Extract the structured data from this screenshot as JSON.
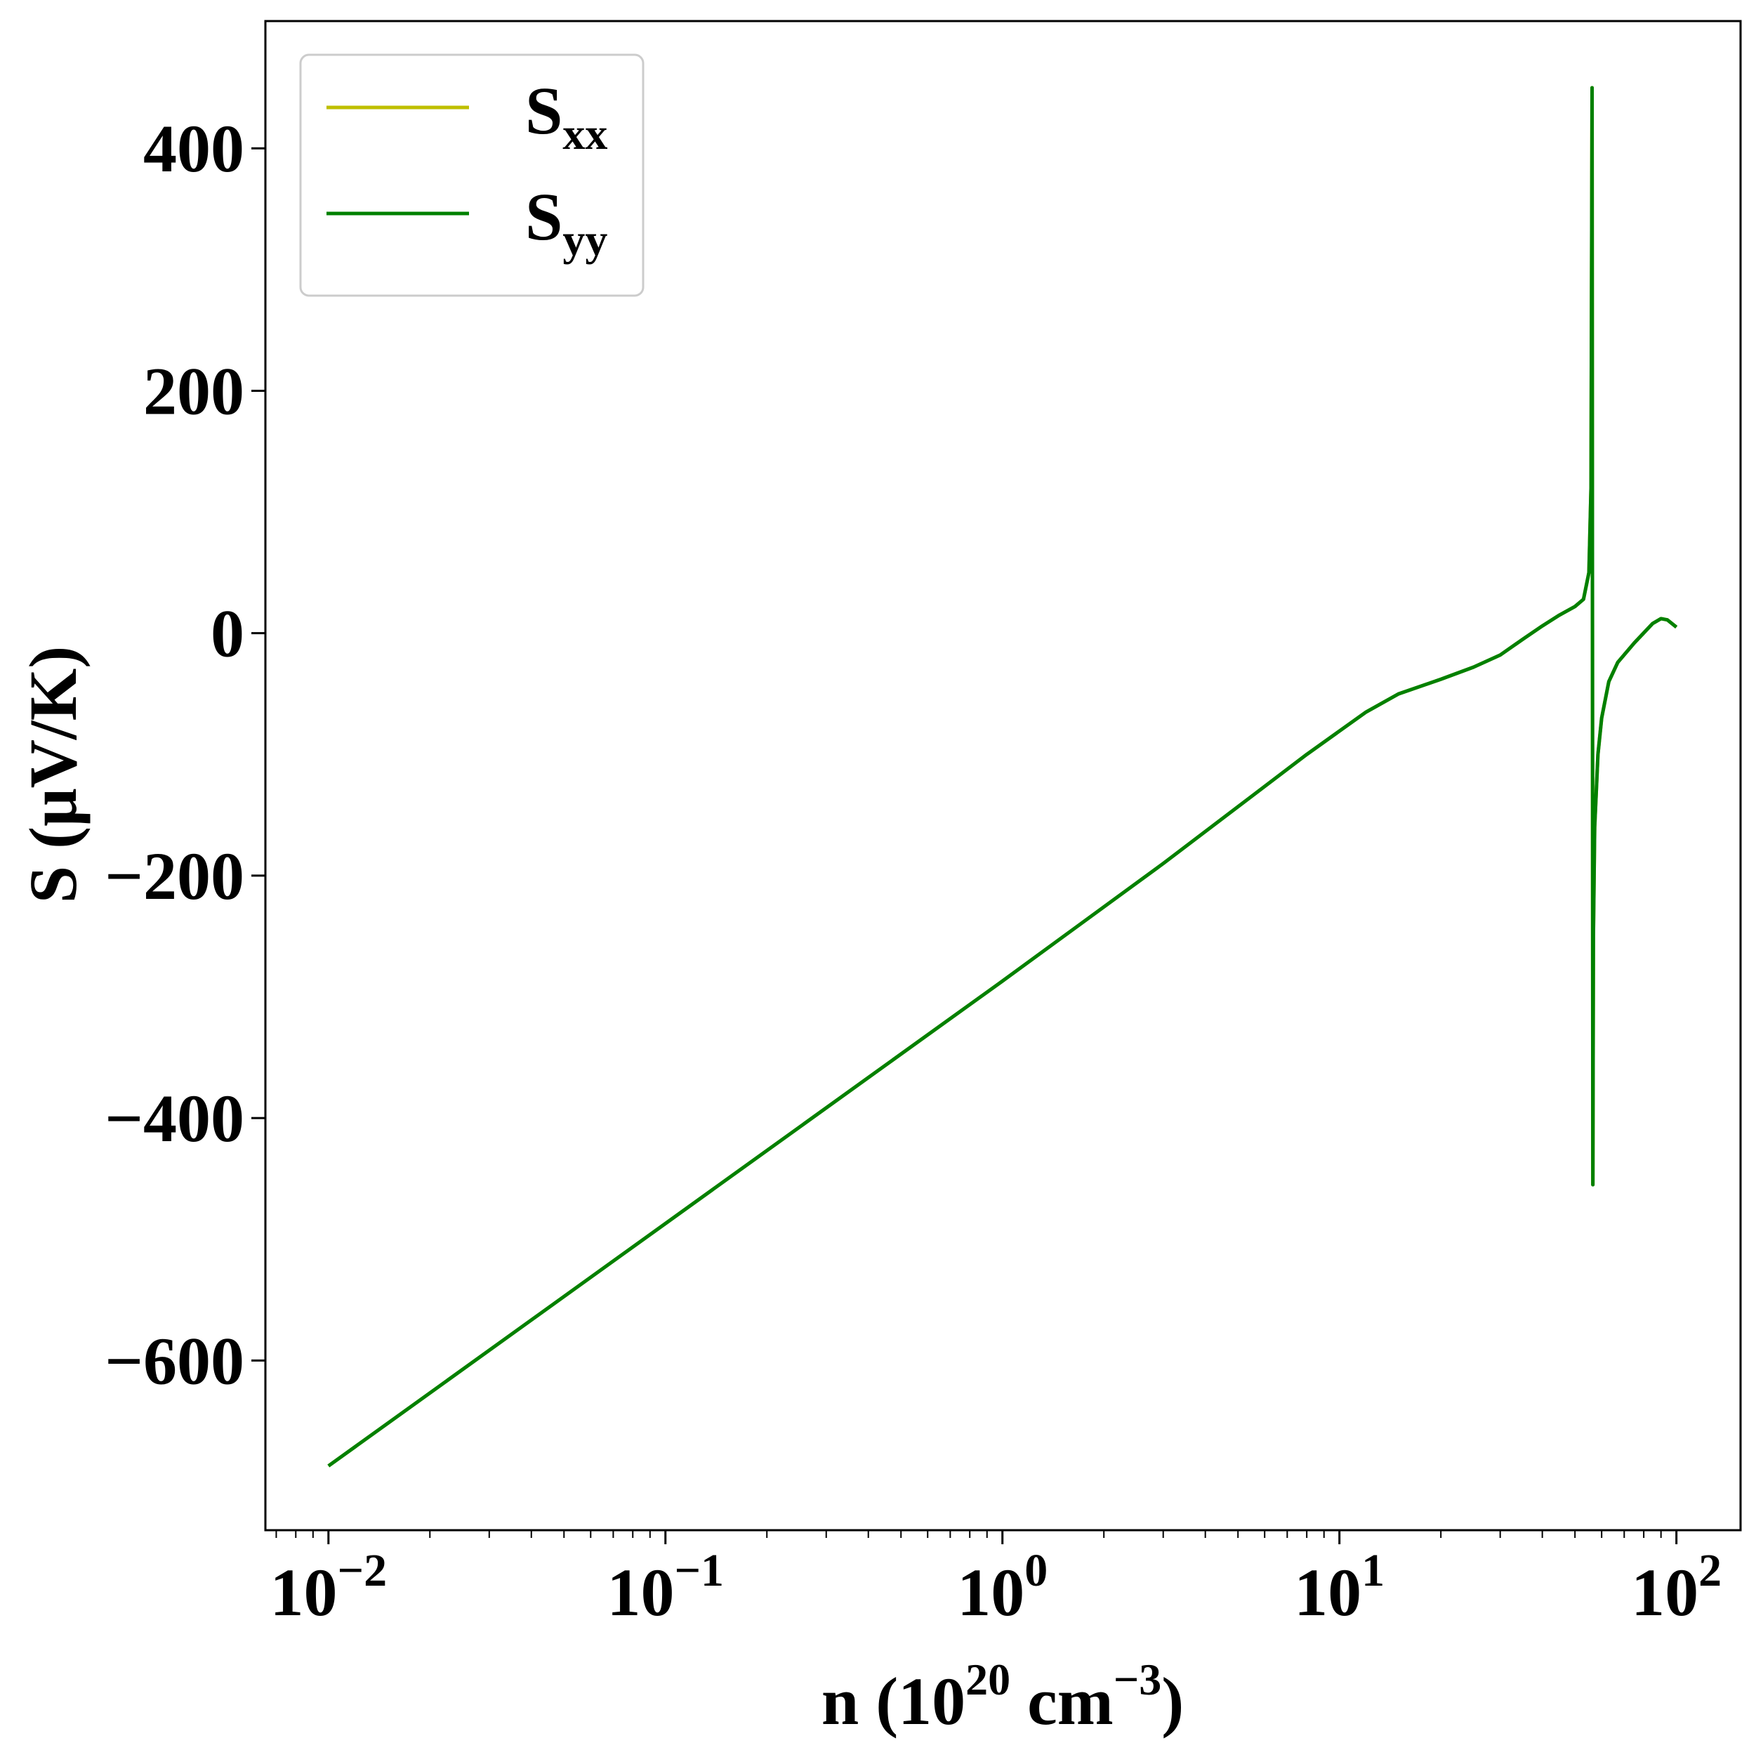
{
  "chart_data": {
    "type": "line",
    "xscale": "log",
    "xlim": [
      0.0065,
      155
    ],
    "ylim": [
      -740,
      505
    ],
    "xlabel": {
      "base": "n (10",
      "sup1": "20",
      "mid": " cm",
      "sup2": "−3",
      "end": ")"
    },
    "ylabel": "S (μV/K)",
    "x_ticks": [
      {
        "value": 0.01,
        "base": "10",
        "exp": "−2"
      },
      {
        "value": 0.1,
        "base": "10",
        "exp": "−1"
      },
      {
        "value": 1,
        "base": "10",
        "exp": "0"
      },
      {
        "value": 10,
        "base": "10",
        "exp": "1"
      },
      {
        "value": 100,
        "base": "10",
        "exp": "2"
      }
    ],
    "y_ticks": [
      {
        "value": 400,
        "label": "400"
      },
      {
        "value": 200,
        "label": "200"
      },
      {
        "value": 0,
        "label": "0"
      },
      {
        "value": -200,
        "label": "−200"
      },
      {
        "value": -400,
        "label": "−400"
      },
      {
        "value": -600,
        "label": "−600"
      }
    ],
    "legend": {
      "placement": "top-left",
      "entries": [
        {
          "base": "S",
          "sub": "xx",
          "color": "#bfbf00"
        },
        {
          "base": "S",
          "sub": "yy",
          "color": "#008000"
        }
      ]
    },
    "series": [
      {
        "name": "Sxx",
        "color": "#bfbf00",
        "values": [
          [
            0.01,
            -687
          ],
          [
            0.1,
            -487
          ],
          [
            1,
            -287
          ],
          [
            3,
            -190
          ],
          [
            8,
            -100
          ],
          [
            12,
            -65
          ],
          [
            15,
            -50
          ],
          [
            20,
            -38
          ],
          [
            25,
            -28
          ],
          [
            30,
            -18
          ],
          [
            35,
            -5
          ],
          [
            40,
            6
          ],
          [
            45,
            15
          ],
          [
            50,
            22
          ],
          [
            53,
            28
          ],
          [
            55,
            50
          ],
          [
            55.8,
            120
          ],
          [
            56.2,
            450
          ],
          [
            56.35,
            0
          ],
          [
            56.5,
            -455
          ],
          [
            56.7,
            -250
          ],
          [
            57.2,
            -160
          ],
          [
            58.5,
            -100
          ],
          [
            60,
            -70
          ],
          [
            63,
            -40
          ],
          [
            67,
            -24
          ],
          [
            75,
            -8
          ],
          [
            85,
            8
          ],
          [
            90,
            12
          ],
          [
            94,
            11
          ],
          [
            100,
            5
          ]
        ]
      },
      {
        "name": "Syy",
        "color": "#008000",
        "values": [
          [
            0.01,
            -687
          ],
          [
            0.1,
            -487
          ],
          [
            1,
            -287
          ],
          [
            3,
            -190
          ],
          [
            8,
            -100
          ],
          [
            12,
            -65
          ],
          [
            15,
            -50
          ],
          [
            20,
            -38
          ],
          [
            25,
            -28
          ],
          [
            30,
            -18
          ],
          [
            35,
            -5
          ],
          [
            40,
            6
          ],
          [
            45,
            15
          ],
          [
            50,
            22
          ],
          [
            53,
            28
          ],
          [
            55,
            50
          ],
          [
            55.8,
            120
          ],
          [
            56.2,
            450
          ],
          [
            56.35,
            0
          ],
          [
            56.5,
            -455
          ],
          [
            56.7,
            -250
          ],
          [
            57.2,
            -160
          ],
          [
            58.5,
            -100
          ],
          [
            60,
            -70
          ],
          [
            63,
            -40
          ],
          [
            67,
            -24
          ],
          [
            75,
            -8
          ],
          [
            85,
            8
          ],
          [
            90,
            12
          ],
          [
            94,
            11
          ],
          [
            100,
            5
          ]
        ]
      }
    ]
  }
}
